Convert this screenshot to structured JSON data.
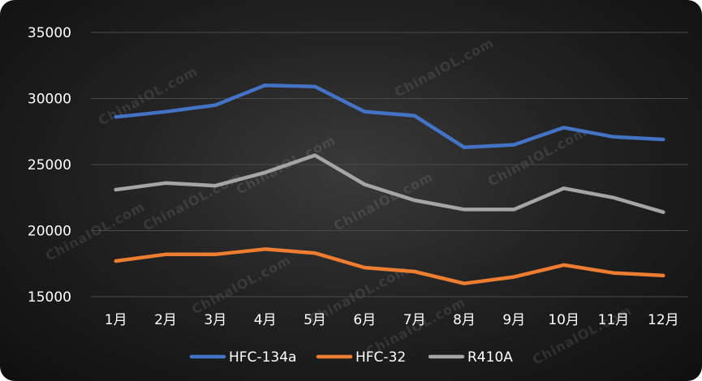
{
  "chart_data": {
    "type": "line",
    "title": "",
    "xlabel": "",
    "ylabel": "",
    "categories": [
      "1月",
      "2月",
      "3月",
      "4月",
      "5月",
      "6月",
      "7月",
      "8月",
      "9月",
      "10月",
      "11月",
      "12月"
    ],
    "ylim": [
      15000,
      35000
    ],
    "yticks": [
      15000,
      20000,
      25000,
      30000,
      35000
    ],
    "grid": true,
    "legend_position": "bottom",
    "series": [
      {
        "name": "HFC-134a",
        "color": "#4472C4",
        "values": [
          28600,
          29000,
          29500,
          31000,
          30900,
          29000,
          28700,
          26300,
          26500,
          27800,
          27100,
          26900
        ]
      },
      {
        "name": "HFC-32",
        "color": "#ED7D31",
        "values": [
          17700,
          18200,
          18200,
          18600,
          18300,
          17200,
          16900,
          16000,
          16500,
          17400,
          16800,
          16600
        ]
      },
      {
        "name": "R410A",
        "color": "#A5A5A5",
        "values": [
          23100,
          23600,
          23400,
          24400,
          25700,
          23500,
          22300,
          21600,
          21600,
          23200,
          22500,
          21400
        ]
      }
    ]
  },
  "watermark": "ChinaIOL.com"
}
